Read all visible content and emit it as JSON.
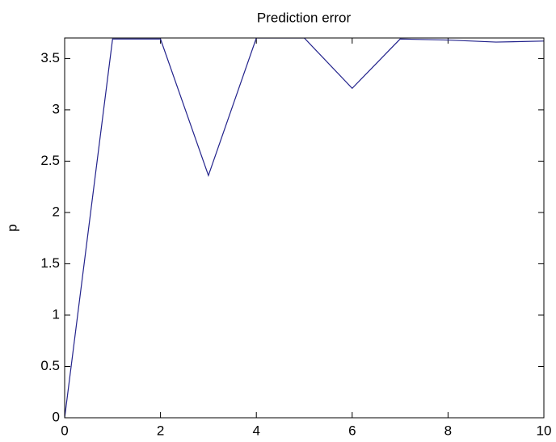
{
  "chart_data": {
    "type": "line",
    "title": "Prediction error",
    "y_label": "p",
    "x": [
      0,
      1,
      2,
      3,
      4,
      5,
      6,
      7,
      8,
      9,
      10
    ],
    "series": [
      {
        "name": "p",
        "color": "#23238c",
        "values": [
          0,
          3.69,
          3.69,
          2.36,
          3.7,
          3.7,
          3.21,
          3.69,
          3.68,
          3.66,
          3.67
        ]
      }
    ],
    "xlim": [
      0,
      10
    ],
    "xticks": [
      0,
      2,
      4,
      6,
      8,
      10
    ],
    "ylim": [
      0,
      3.7
    ],
    "yticks": [
      0,
      0.5,
      1,
      1.5,
      2,
      2.5,
      3,
      3.5
    ],
    "grid": false,
    "legend": false
  }
}
